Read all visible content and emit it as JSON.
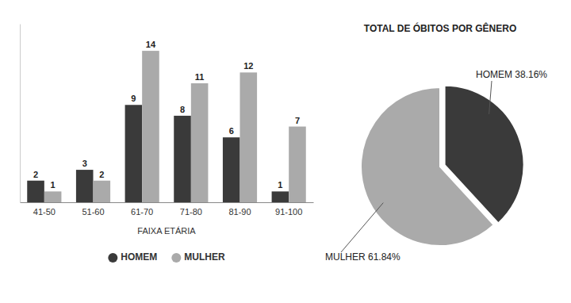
{
  "chart_data": [
    {
      "type": "bar",
      "categories": [
        "41-50",
        "51-60",
        "61-70",
        "71-80",
        "81-90",
        "91-100"
      ],
      "series": [
        {
          "name": "HOMEM",
          "color": "#3a3a3a",
          "values": [
            2,
            3,
            9,
            8,
            6,
            1
          ]
        },
        {
          "name": "MULHER",
          "color": "#aaaaaa",
          "values": [
            1,
            2,
            14,
            11,
            12,
            7
          ]
        }
      ],
      "x_label": "FAIXA ETÁRIA",
      "ylim": [
        0,
        16.5
      ],
      "tick_labels": "x",
      "data_labels": true,
      "legend": "bottom",
      "grid": false
    },
    {
      "type": "pie",
      "title": "TOTAL DE ÓBITOS POR GÊNERO",
      "values": [
        38.16,
        61.84
      ],
      "value_labels": [
        "HOMEM 38.16%",
        "MULHER 61.84%"
      ],
      "colors": [
        "#3a3a3a",
        "#aaaaaa"
      ],
      "data_labels": true
    }
  ]
}
